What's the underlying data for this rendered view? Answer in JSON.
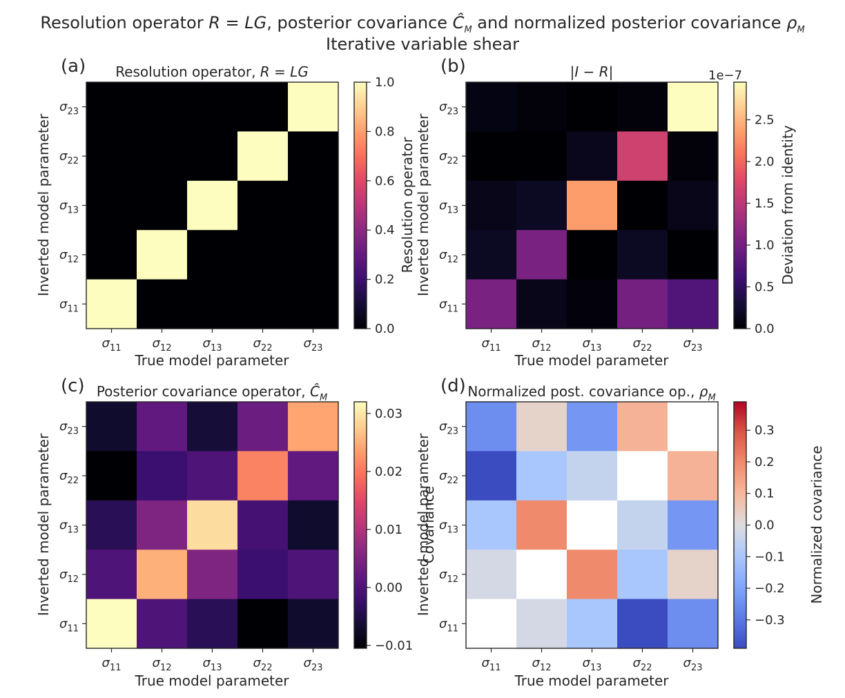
{
  "figure": {
    "title_line1": "Resolution operator R = LG, posterior covariance Ĉ_M and normalized posterior covariance ρ_M",
    "title_line2": "Iterative variable shear"
  },
  "chart_data": [
    {
      "type": "heatmap",
      "panel_label": "(a)",
      "title": "Resolution operator, R = LG",
      "xlabel": "True model parameter",
      "ylabel": "Inverted model parameter",
      "x_categories": [
        "σ11",
        "σ12",
        "σ13",
        "σ22",
        "σ23"
      ],
      "y_categories": [
        "σ11",
        "σ12",
        "σ13",
        "σ22",
        "σ23"
      ],
      "colormap": "magma",
      "vmin": 0,
      "vmax": 1,
      "colorbar_label": "Resolution operator",
      "colorbar_offset_text": "",
      "colorbar_ticks": [
        0.0,
        0.2,
        0.4,
        0.6,
        0.8,
        1.0
      ],
      "colorbar_tick_labels": [
        "0.0",
        "0.2",
        "0.4",
        "0.6",
        "0.8",
        "1.0"
      ],
      "values": [
        [
          0,
          0,
          0,
          0,
          1
        ],
        [
          0,
          0,
          0,
          1,
          0
        ],
        [
          0,
          0,
          1,
          0,
          0
        ],
        [
          0,
          1,
          0,
          0,
          0
        ],
        [
          1,
          0,
          0,
          0,
          0
        ]
      ]
    },
    {
      "type": "heatmap",
      "panel_label": "(b)",
      "title": "|I − R|",
      "xlabel": "True model parameter",
      "ylabel": "Inverted model parameter",
      "x_categories": [
        "σ11",
        "σ12",
        "σ13",
        "σ22",
        "σ23"
      ],
      "y_categories": [
        "σ11",
        "σ12",
        "σ13",
        "σ22",
        "σ23"
      ],
      "colormap": "magma",
      "vmin": 0,
      "vmax": 2.95,
      "colorbar_label": "Deviation from identity",
      "colorbar_offset_text": "1e−7",
      "colorbar_ticks": [
        0.0,
        0.5,
        1.0,
        1.5,
        2.0,
        2.5
      ],
      "colorbar_tick_labels": [
        "0.0",
        "0.5",
        "1.0",
        "1.5",
        "2.0",
        "2.5"
      ],
      "values": [
        [
          0.08,
          0.04,
          0.0,
          0.04,
          2.95
        ],
        [
          0.0,
          0.0,
          0.15,
          1.65,
          0.04
        ],
        [
          0.12,
          0.18,
          2.35,
          0.0,
          0.12
        ],
        [
          0.18,
          1.05,
          0.0,
          0.18,
          0.0
        ],
        [
          1.05,
          0.12,
          0.05,
          1.0,
          0.75
        ]
      ]
    },
    {
      "type": "heatmap",
      "panel_label": "(c)",
      "title": "Posterior covariance operator, Ĉ_M",
      "xlabel": "True model parameter",
      "ylabel": "Inverted model parameter",
      "x_categories": [
        "σ11",
        "σ12",
        "σ13",
        "σ22",
        "σ23"
      ],
      "y_categories": [
        "σ11",
        "σ12",
        "σ13",
        "σ22",
        "σ23"
      ],
      "colormap": "magma",
      "vmin": -0.0105,
      "vmax": 0.032,
      "colorbar_label": "Covariance",
      "colorbar_offset_text": "",
      "colorbar_ticks": [
        -0.01,
        0.0,
        0.01,
        0.02,
        0.03
      ],
      "colorbar_tick_labels": [
        "−0.01",
        "0.00",
        "0.01",
        "0.02",
        "0.03"
      ],
      "values": [
        [
          -0.007,
          0.002,
          -0.006,
          0.003,
          0.024
        ],
        [
          -0.0105,
          -0.002,
          0.0,
          0.021,
          0.002
        ],
        [
          -0.004,
          0.005,
          0.029,
          -0.001,
          -0.007
        ],
        [
          0.0,
          0.025,
          0.005,
          -0.002,
          0.0
        ],
        [
          0.032,
          0.0,
          -0.004,
          -0.0105,
          -0.007
        ]
      ]
    },
    {
      "type": "heatmap",
      "panel_label": "(d)",
      "title": "Normalized post. covariance op., ρ_M",
      "xlabel": "True model parameter",
      "ylabel": "Inverted model parameter",
      "x_categories": [
        "σ11",
        "σ12",
        "σ13",
        "σ22",
        "σ23"
      ],
      "y_categories": [
        "σ11",
        "σ12",
        "σ13",
        "σ22",
        "σ23"
      ],
      "colormap": "coolwarm",
      "vmin": -0.39,
      "vmax": 0.39,
      "colorbar_label": "Normalized covariance",
      "colorbar_offset_text": "",
      "colorbar_ticks": [
        -0.3,
        -0.2,
        -0.1,
        0.0,
        0.1,
        0.2,
        0.3
      ],
      "colorbar_tick_labels": [
        "−0.3",
        "−0.2",
        "−0.1",
        "0.0",
        "0.1",
        "0.2",
        "0.3"
      ],
      "masked_diagonal": true,
      "values": [
        [
          -0.25,
          0.03,
          -0.23,
          0.11,
          null
        ],
        [
          -0.39,
          -0.1,
          -0.05,
          null,
          0.11
        ],
        [
          -0.1,
          0.2,
          null,
          -0.05,
          -0.23
        ],
        [
          -0.02,
          null,
          0.2,
          -0.1,
          0.03
        ],
        [
          null,
          -0.02,
          -0.1,
          -0.39,
          -0.25
        ]
      ]
    }
  ]
}
